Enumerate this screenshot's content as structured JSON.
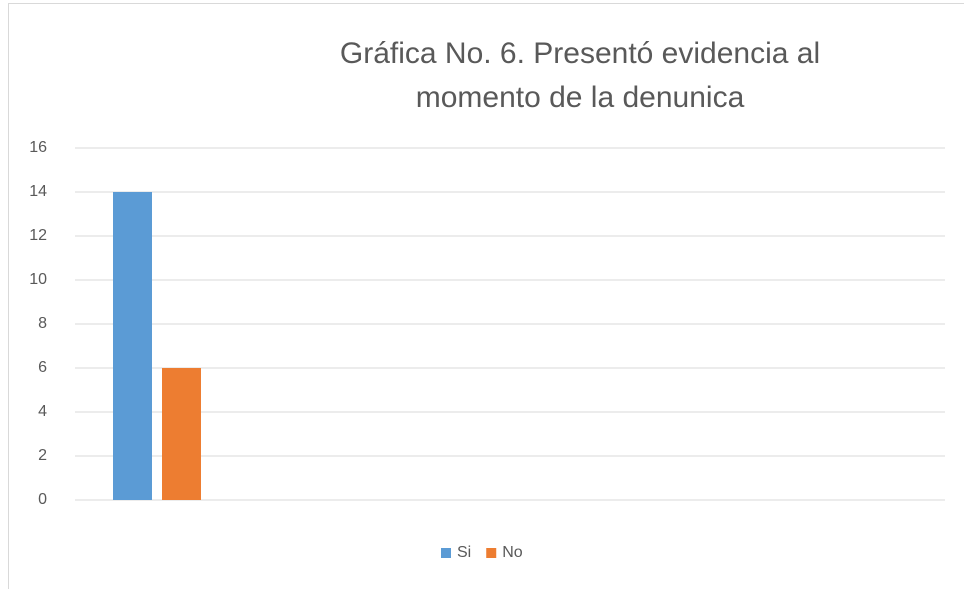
{
  "chart_data": {
    "type": "bar",
    "title": "Gráfica No. 6. Presentó evidencia al momento de la denunica",
    "categories": [
      null
    ],
    "series": [
      {
        "name": "Si",
        "color": "#5b9bd5",
        "values": [
          14
        ]
      },
      {
        "name": "No",
        "color": "#ed7d31",
        "values": [
          6
        ]
      }
    ],
    "ylim": [
      0,
      16
    ],
    "yticks": [
      0,
      2,
      4,
      6,
      8,
      10,
      12,
      14,
      16
    ],
    "grid": true,
    "legend": "bottom"
  }
}
